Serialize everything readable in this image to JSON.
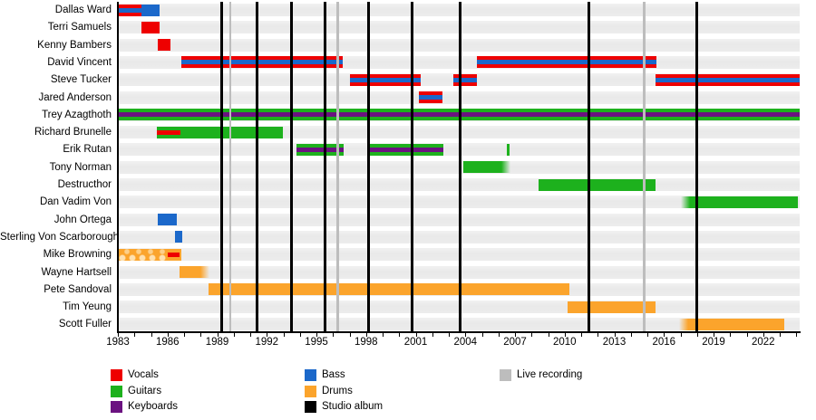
{
  "chart_data": {
    "type": "gantt",
    "description": "Band line-up timeline: member tenures by role with studio album and live recording markers",
    "x_axis": {
      "start": 1983,
      "end": 2024.2,
      "minor_tick_interval": 1,
      "label_interval": 3,
      "tick_labels": [
        "1983",
        "1986",
        "1989",
        "1992",
        "1995",
        "1998",
        "2001",
        "2004",
        "2007",
        "2010",
        "2013",
        "2016",
        "2019",
        "2022"
      ]
    },
    "colors": {
      "vocals": "#ee0000",
      "guitars": "#1db11d",
      "keyboards": "#6b1280",
      "bass": "#1b68ca",
      "drums": "#fba42c",
      "studio_album": "#000000",
      "live_recording": "#bdbdbd",
      "row_band": "#ececec"
    },
    "rows": [
      {
        "name": "Dallas Ward",
        "segments": [
          {
            "start": 1983.0,
            "end": 1984.4,
            "role": "vocals",
            "stripe": "bass"
          },
          {
            "start": 1984.4,
            "end": 1985.5,
            "role": "bass"
          }
        ]
      },
      {
        "name": "Terri Samuels",
        "segments": [
          {
            "start": 1984.45,
            "end": 1985.5,
            "role": "vocals"
          }
        ]
      },
      {
        "name": "Kenny Bambers",
        "segments": [
          {
            "start": 1985.4,
            "end": 1986.2,
            "role": "vocals"
          }
        ]
      },
      {
        "name": "David Vincent",
        "segments": [
          {
            "start": 1986.85,
            "end": 1996.6,
            "role": "vocals",
            "stripe": "bass"
          },
          {
            "start": 2004.7,
            "end": 2015.55,
            "role": "vocals",
            "stripe": "bass"
          }
        ]
      },
      {
        "name": "Steve Tucker",
        "segments": [
          {
            "start": 1997.05,
            "end": 2001.3,
            "role": "vocals",
            "stripe": "bass"
          },
          {
            "start": 2003.3,
            "end": 2004.7,
            "role": "vocals",
            "stripe": "bass"
          },
          {
            "start": 2015.5,
            "end": 2024.2,
            "role": "vocals",
            "stripe": "bass"
          }
        ]
      },
      {
        "name": "Jared Anderson",
        "segments": [
          {
            "start": 2001.2,
            "end": 2002.6,
            "role": "vocals",
            "stripe": "bass"
          }
        ]
      },
      {
        "name": "Trey Azagthoth",
        "segments": [
          {
            "start": 1983.0,
            "end": 2024.2,
            "role": "guitars",
            "stripe": "keyboards"
          }
        ]
      },
      {
        "name": "Richard Brunelle",
        "segments": [
          {
            "start": 1985.35,
            "end": 1993.0,
            "role": "guitars",
            "stripe": "vocals",
            "stripe_start": 1985.35,
            "stripe_end": 1986.8
          }
        ]
      },
      {
        "name": "Erik Rutan",
        "segments": [
          {
            "start": 1993.8,
            "end": 1996.65,
            "role": "guitars",
            "stripe": "keyboards"
          },
          {
            "start": 1998.2,
            "end": 2002.65,
            "role": "guitars",
            "stripe": "keyboards"
          },
          {
            "start": 2006.5,
            "end": 2006.65,
            "role": "guitars"
          }
        ]
      },
      {
        "name": "Tony Norman",
        "segments": [
          {
            "start": 2003.9,
            "end": 2006.7,
            "role": "guitars",
            "fade": "right"
          }
        ]
      },
      {
        "name": "Destructhor",
        "segments": [
          {
            "start": 2008.4,
            "end": 2015.5,
            "role": "guitars"
          }
        ]
      },
      {
        "name": "Dan Vadim Von",
        "segments": [
          {
            "start": 2017.05,
            "end": 2024.1,
            "role": "guitars",
            "fade": "left"
          }
        ]
      },
      {
        "name": "John Ortega",
        "segments": [
          {
            "start": 1985.4,
            "end": 1986.55,
            "role": "bass"
          }
        ]
      },
      {
        "name": "Sterling Von Scarborough",
        "segments": [
          {
            "start": 1986.45,
            "end": 1986.9,
            "role": "bass"
          }
        ]
      },
      {
        "name": "Mike Browning",
        "segments": [
          {
            "start": 1983.0,
            "end": 1986.85,
            "role": "drums",
            "texture": "scallop",
            "texture_end": 1986.0,
            "stripe": "vocals",
            "stripe_start": 1986.0,
            "stripe_end": 1986.75
          }
        ]
      },
      {
        "name": "Wayne Hartsell",
        "segments": [
          {
            "start": 1986.75,
            "end": 1988.55,
            "role": "drums",
            "fade": "right"
          }
        ]
      },
      {
        "name": "Pete Sandoval",
        "segments": [
          {
            "start": 1988.5,
            "end": 2010.3,
            "role": "drums"
          }
        ]
      },
      {
        "name": "Tim Yeung",
        "segments": [
          {
            "start": 2010.2,
            "end": 2015.5,
            "role": "drums"
          }
        ]
      },
      {
        "name": "Scott Fuller",
        "segments": [
          {
            "start": 2016.9,
            "end": 2023.25,
            "role": "drums",
            "fade": "left"
          }
        ]
      }
    ],
    "event_lines": {
      "studio_albums": [
        1989.3,
        1991.4,
        1993.5,
        1995.5,
        1998.15,
        2000.8,
        2003.7,
        2011.45,
        2018.0
      ],
      "live_recordings": [
        1989.8,
        1996.3,
        2014.8
      ]
    },
    "legend": {
      "columns": [
        [
          {
            "label": "Vocals",
            "color": "vocals"
          },
          {
            "label": "Guitars",
            "color": "guitars"
          },
          {
            "label": "Keyboards",
            "color": "keyboards"
          }
        ],
        [
          {
            "label": "Bass",
            "color": "bass"
          },
          {
            "label": "Drums",
            "color": "drums"
          },
          {
            "label": "Studio album",
            "color": "studio_album"
          }
        ],
        [
          {
            "label": "Live recording",
            "color": "live_recording"
          }
        ]
      ]
    }
  }
}
